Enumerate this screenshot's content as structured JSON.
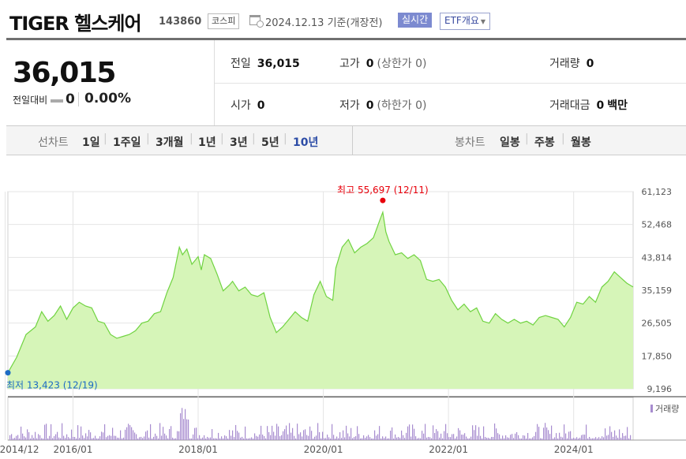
{
  "header": {
    "name": "TIGER 헬스케어",
    "code": "143860",
    "market": "코스피",
    "date": "2024.12.13 기준(개장전)",
    "realtime_label": "실시간",
    "etf_label": "ETF개요",
    "etf_caret": "▼"
  },
  "quote": {
    "price": "36,015",
    "change_label": "전일대비",
    "change_value": "0",
    "change_pct": "0.00%",
    "prev_close_label": "전일",
    "prev_close": "36,015",
    "high_label": "고가",
    "high": "0",
    "upper_limit": "(상한가 0)",
    "volume_label": "거래량",
    "volume": "0",
    "open_label": "시가",
    "open": "0",
    "low_label": "저가",
    "low": "0",
    "lower_limit": "(하한가 0)",
    "amount_label": "거래대금",
    "amount": "0",
    "amount_unit": "백만"
  },
  "toolbar": {
    "line_label": "선차트",
    "line_periods": [
      "1일",
      "1주일",
      "3개월",
      "1년",
      "3년",
      "5년",
      "10년"
    ],
    "active_period": "10년",
    "candle_label": "봉차트",
    "candle_periods": [
      "일봉",
      "주봉",
      "월봉"
    ]
  },
  "chart_data": {
    "type": "area",
    "y_ticks": [
      "61,123",
      "52,468",
      "43,814",
      "35,159",
      "26,505",
      "17,850",
      "9,196"
    ],
    "ylim": [
      9196,
      61123
    ],
    "x_ticks": [
      "2014/12",
      "2016/01",
      "2018/01",
      "2020/01",
      "2022/01",
      "2024/01"
    ],
    "xlim": [
      2014.96,
      2024.95
    ],
    "high_label": "최고 55,697 (12/11)",
    "low_label": "최저 13,423 (12/19)",
    "volume_label": "거래량",
    "grid": true,
    "colors": {
      "line": "#70d341",
      "fill": "#d6f5b8",
      "volume": "#a78ccf",
      "high": "#e8000b",
      "low": "#1d6bc4"
    },
    "price": {
      "x": [
        2014.96,
        2015.1,
        2015.25,
        2015.4,
        2015.5,
        2015.6,
        2015.7,
        2015.8,
        2015.9,
        2016.0,
        2016.1,
        2016.2,
        2016.3,
        2016.4,
        2016.5,
        2016.6,
        2016.7,
        2016.8,
        2016.9,
        2017.0,
        2017.1,
        2017.2,
        2017.3,
        2017.4,
        2017.5,
        2017.6,
        2017.7,
        2017.75,
        2017.82,
        2017.9,
        2018.0,
        2018.05,
        2018.1,
        2018.2,
        2018.3,
        2018.4,
        2018.5,
        2018.55,
        2018.65,
        2018.75,
        2018.85,
        2018.95,
        2019.05,
        2019.15,
        2019.25,
        2019.35,
        2019.45,
        2019.55,
        2019.65,
        2019.75,
        2019.85,
        2019.95,
        2020.05,
        2020.15,
        2020.2,
        2020.3,
        2020.4,
        2020.5,
        2020.6,
        2020.7,
        2020.8,
        2020.9,
        2020.95,
        2021.0,
        2021.05,
        2021.15,
        2021.25,
        2021.35,
        2021.45,
        2021.55,
        2021.65,
        2021.75,
        2021.85,
        2021.95,
        2022.05,
        2022.15,
        2022.25,
        2022.35,
        2022.45,
        2022.55,
        2022.65,
        2022.75,
        2022.85,
        2022.95,
        2023.05,
        2023.15,
        2023.25,
        2023.35,
        2023.45,
        2023.55,
        2023.65,
        2023.75,
        2023.85,
        2023.95,
        2024.05,
        2024.15,
        2024.25,
        2024.35,
        2024.45,
        2024.55,
        2024.65,
        2024.75,
        2024.85,
        2024.95
      ],
      "y": [
        13423,
        17500,
        23500,
        25500,
        29500,
        27000,
        28500,
        31000,
        27500,
        30500,
        32000,
        31000,
        30500,
        27000,
        26500,
        23500,
        22500,
        23000,
        23500,
        24500,
        26500,
        27000,
        29000,
        29500,
        34500,
        38500,
        46500,
        44500,
        46000,
        42000,
        44000,
        40500,
        44500,
        43500,
        39500,
        35000,
        36500,
        37500,
        35000,
        36000,
        34000,
        33500,
        34500,
        28000,
        24000,
        25500,
        27500,
        29500,
        28000,
        27000,
        34000,
        37500,
        33500,
        32500,
        41000,
        46500,
        48500,
        45000,
        46500,
        47500,
        49000,
        53500,
        55697,
        50500,
        48000,
        44500,
        45000,
        43500,
        44500,
        43000,
        38000,
        37500,
        38000,
        36000,
        32500,
        30000,
        31500,
        29500,
        30500,
        27000,
        26500,
        29000,
        27500,
        26500,
        27500,
        26500,
        27000,
        26000,
        28000,
        28500,
        28000,
        27500,
        25500,
        28000,
        32000,
        31500,
        33500,
        32000,
        36000,
        37500,
        40000,
        38500,
        37000,
        36015
      ]
    },
    "volume": {
      "peak_label_x": 2017.78
    }
  }
}
